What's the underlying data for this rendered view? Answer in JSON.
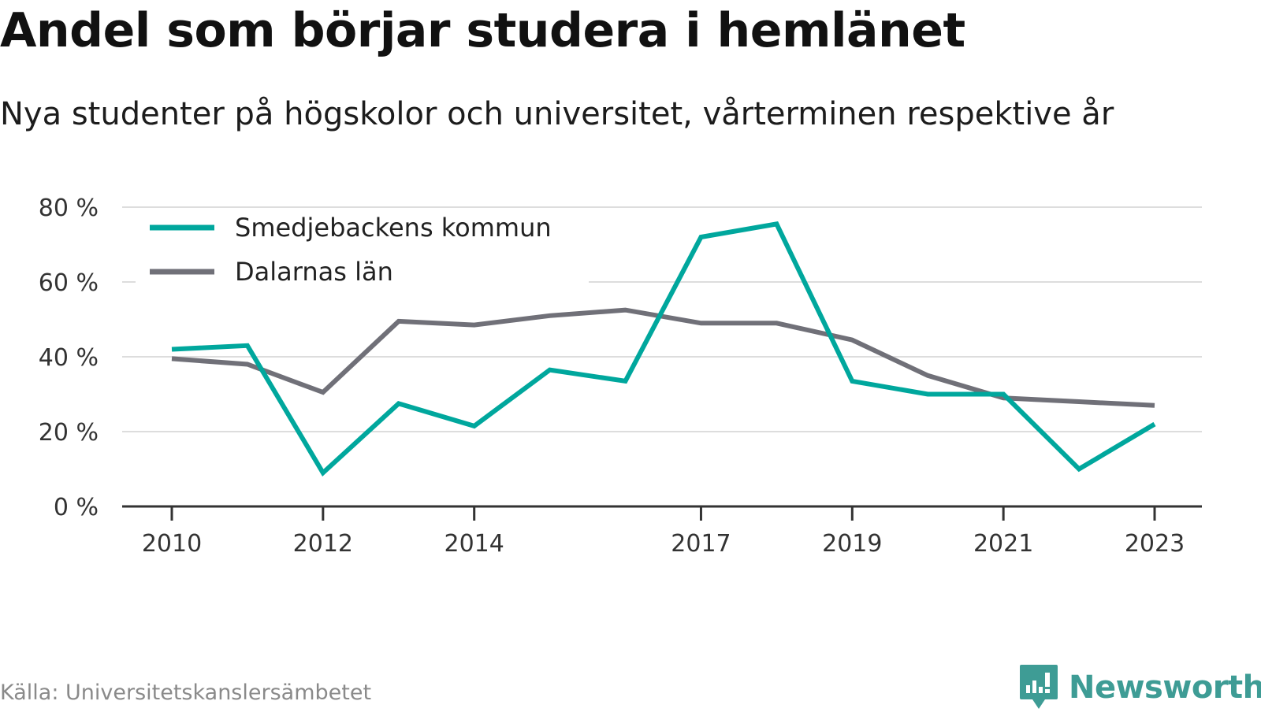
{
  "title": "Andel som börjar studera i hemlänet",
  "subtitle": "Nya studenter på högskolor och universitet, vårterminen respektive år",
  "source": "Källa: Universitetskanslersämbetet",
  "brand": {
    "name": "Newsworthy",
    "icon": "newsworthy-logo-icon",
    "color": "#3e9c95"
  },
  "chart_data": {
    "type": "line",
    "x": [
      2010,
      2011,
      2012,
      2013,
      2014,
      2015,
      2016,
      2017,
      2018,
      2019,
      2020,
      2021,
      2022,
      2023
    ],
    "series": [
      {
        "name": "Smedjebackens kommun",
        "color": "#00a79d",
        "values": [
          42,
          43,
          9,
          27.5,
          21.5,
          36.5,
          33.5,
          72,
          75.5,
          33.5,
          30,
          30,
          10,
          22
        ]
      },
      {
        "name": "Dalarnas län",
        "color": "#707078",
        "values": [
          39.5,
          38,
          30.5,
          49.5,
          48.5,
          51,
          52.5,
          49,
          49,
          44.5,
          35,
          29,
          28,
          27
        ]
      }
    ],
    "xticks": [
      2010,
      2012,
      2014,
      2017,
      2019,
      2021,
      2023
    ],
    "xtick_labels": [
      "2010",
      "2012",
      "2014",
      "2017",
      "2019",
      "2021",
      "2023"
    ],
    "yticks": [
      0,
      20,
      40,
      60,
      80
    ],
    "ytick_labels": [
      "0 %",
      "20 %",
      "40 %",
      "60 %",
      "80 %"
    ],
    "ylim": [
      0,
      80
    ],
    "xlim": [
      2010,
      2023
    ],
    "grid": true,
    "legend_position": "top-left"
  }
}
